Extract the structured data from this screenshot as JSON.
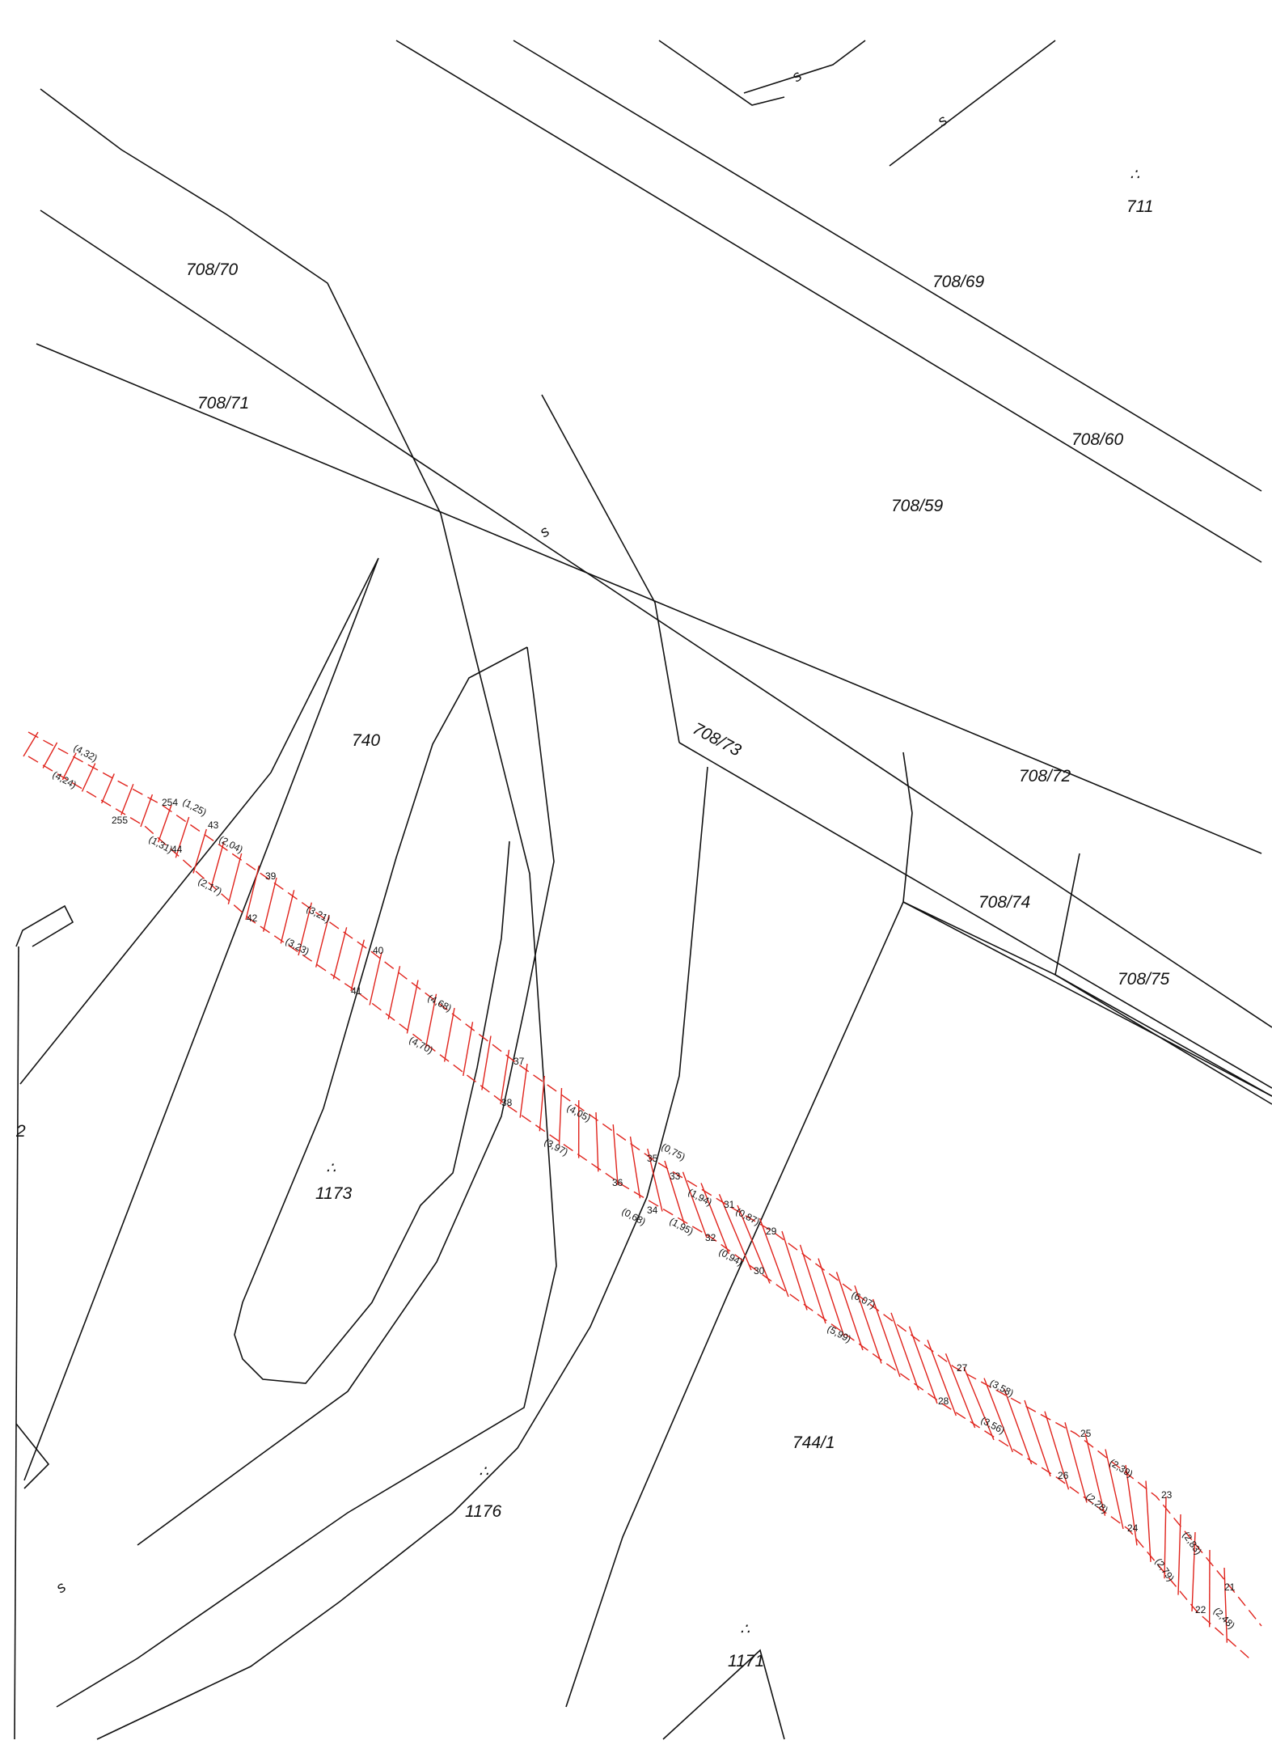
{
  "parcels": [
    {
      "id": "p708-70",
      "text": "708/70"
    },
    {
      "id": "p708-71",
      "text": "708/71"
    },
    {
      "id": "p708-69",
      "text": "708/69"
    },
    {
      "id": "p708-60",
      "text": "708/60"
    },
    {
      "id": "p708-59",
      "text": "708/59"
    },
    {
      "id": "p711",
      "text": "711"
    },
    {
      "id": "p740",
      "text": "740"
    },
    {
      "id": "p708-73",
      "text": "708/73"
    },
    {
      "id": "p708-72",
      "text": "708/72"
    },
    {
      "id": "p708-74",
      "text": "708/74"
    },
    {
      "id": "p708-75",
      "text": "708/75"
    },
    {
      "id": "p1173",
      "text": "1173"
    },
    {
      "id": "p1176",
      "text": "1176"
    },
    {
      "id": "p744-1",
      "text": "744/1"
    },
    {
      "id": "p1171",
      "text": "1171"
    },
    {
      "id": "pedge",
      "text": "2"
    }
  ],
  "point_numbers": [
    "255",
    "254",
    "43",
    "44",
    "39",
    "42",
    "40",
    "41",
    "37",
    "38",
    "35",
    "36",
    "33",
    "34",
    "31",
    "32",
    "29",
    "30",
    "27",
    "28",
    "25",
    "26",
    "23",
    "24",
    "21",
    "22"
  ],
  "distances": [
    "(4,32)",
    "(4,24)",
    "(1,25)",
    "(1,31)",
    "(2,04)",
    "(2,17)",
    "(3,21)",
    "(3,23)",
    "(4,68)",
    "(4,70)",
    "(4,05)",
    "(3,97)",
    "(0,75)",
    "(0,68)",
    "(1,94)",
    "(1,95)",
    "(0,87)",
    "(0,94)",
    "(6,07)",
    "(5,99)",
    "(3,58)",
    "(3,56)",
    "(2,39)",
    "(2,28)",
    "(2,83)",
    "(2,79)",
    "(2,48)"
  ],
  "legend": {
    "meadow_symbol": "∴"
  },
  "colors": {
    "boundary": "#111111",
    "easement": "#e0231c"
  }
}
